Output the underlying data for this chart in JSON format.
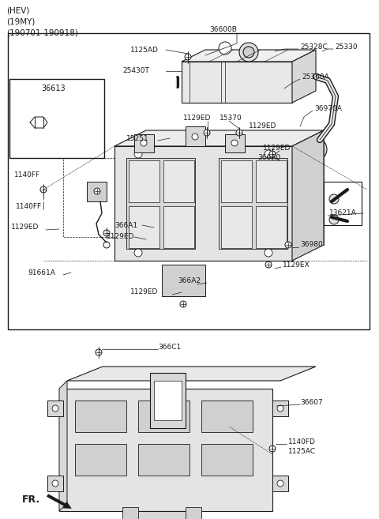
{
  "bg_color": "#ffffff",
  "lc": "#1a1a1a",
  "tc": "#1a1a1a",
  "header": [
    "(HEV)",
    "(19MY)",
    "(190701-190918)"
  ],
  "fig_w": 4.8,
  "fig_h": 6.57,
  "dpi": 100
}
